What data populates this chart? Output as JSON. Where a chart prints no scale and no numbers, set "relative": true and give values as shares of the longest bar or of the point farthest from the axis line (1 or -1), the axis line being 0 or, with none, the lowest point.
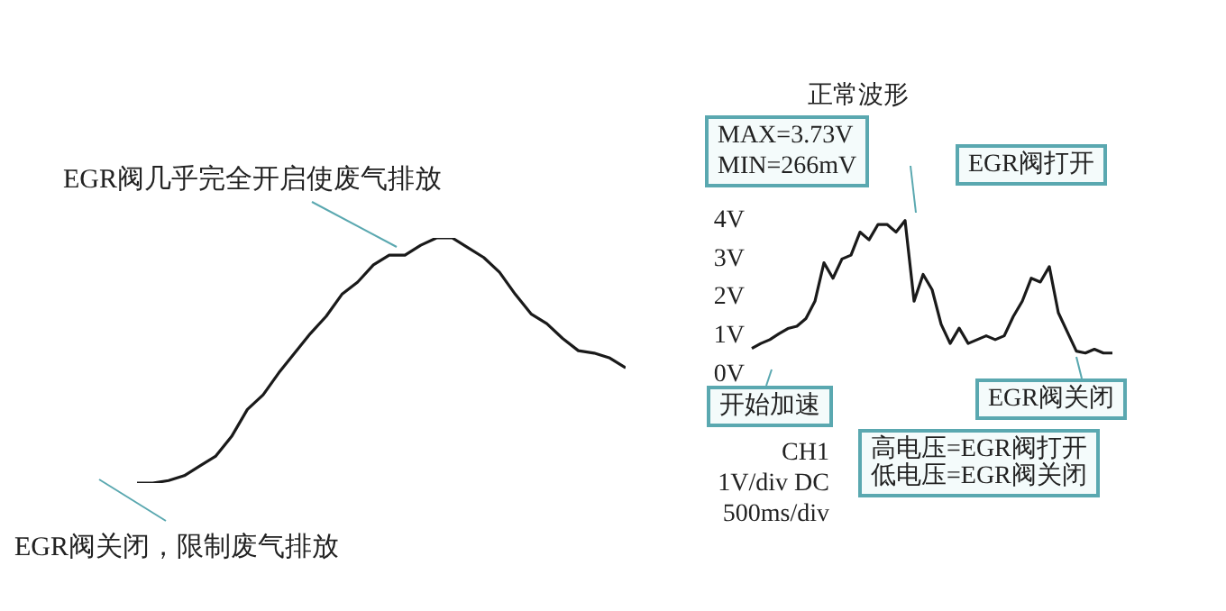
{
  "chart_data": [
    {
      "type": "line",
      "relative": true,
      "tick_labels": false,
      "marker": "none",
      "color": "#1a1a1a",
      "categories": [
        null,
        null,
        null,
        null,
        null,
        null,
        null,
        null,
        null,
        null,
        null,
        null,
        null,
        null,
        null,
        null,
        null,
        null,
        null,
        null,
        null,
        null,
        null,
        null,
        null,
        null,
        null,
        null,
        null,
        null,
        null,
        null
      ],
      "values": [
        0,
        0,
        0.01,
        0.03,
        0.07,
        0.11,
        0.19,
        0.3,
        0.36,
        0.45,
        0.53,
        0.61,
        0.68,
        0.77,
        0.82,
        0.89,
        0.93,
        0.93,
        0.97,
        1,
        1,
        0.96,
        0.92,
        0.86,
        0.77,
        0.69,
        0.65,
        0.59,
        0.54,
        0.53,
        0.51,
        0.47
      ],
      "annotations": [
        "EGR阀几乎完全开启使废气排放",
        "EGR阀关闭，限制废气排放"
      ]
    },
    {
      "type": "line",
      "title": "正常波形",
      "tick_labels": "y",
      "marker": "none",
      "color": "#1a1a1a",
      "ylim": [
        0,
        4
      ],
      "yticks": [
        {
          "value": 0,
          "label": "0V"
        },
        {
          "value": 1,
          "label": "1V"
        },
        {
          "value": 2,
          "label": "2V"
        },
        {
          "value": 3,
          "label": "3V"
        },
        {
          "value": 4,
          "label": "4V"
        }
      ],
      "categories": [
        null,
        null,
        null,
        null,
        null,
        null,
        null,
        null,
        null,
        null,
        null,
        null,
        null,
        null,
        null,
        null,
        null,
        null,
        null,
        null,
        null,
        null,
        null,
        null,
        null,
        null,
        null,
        null,
        null,
        null,
        null,
        null,
        null,
        null,
        null,
        null,
        null,
        null,
        null,
        null,
        null
      ],
      "values": [
        0.67,
        0.8,
        0.9,
        1.05,
        1.19,
        1.25,
        1.45,
        1.9,
        2.9,
        2.5,
        3.0,
        3.1,
        3.7,
        3.5,
        3.9,
        3.9,
        3.7,
        4.0,
        1.9,
        2.6,
        2.2,
        1.3,
        0.8,
        1.2,
        0.8,
        0.9,
        1.0,
        0.9,
        1.0,
        1.5,
        1.9,
        2.5,
        2.4,
        2.8,
        1.6,
        1.1,
        0.6,
        0.55,
        0.65,
        0.55,
        0.55
      ],
      "annotations": [
        "MAX=3.73V\nMIN=266mV",
        "EGR阀打开",
        "开始加速",
        "EGR阀关闭",
        "高电压=EGR阀打开",
        "低电压=EGR阀关闭",
        "CH1\n1V/div DC\n500ms/div"
      ]
    }
  ]
}
